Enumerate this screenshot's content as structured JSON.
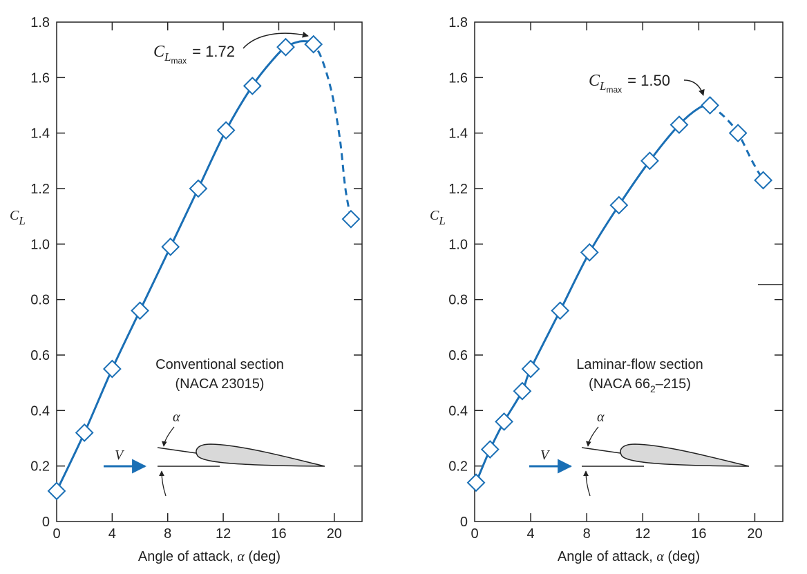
{
  "colors": {
    "series": "#1a6fb5",
    "marker_fill": "#ffffff",
    "axis": "#222222",
    "airfoil_fill": "#d9d9d9"
  },
  "icons": {
    "flow_arrow": "arrow-right-icon",
    "airfoil": "airfoil-icon"
  },
  "chart_data": [
    {
      "type": "line",
      "panel": "left",
      "ylabel_symbol": "C",
      "ylabel_sub": "L",
      "xlabel": "Angle of attack,",
      "xlabel_symbol": "α",
      "xlabel_unit": "(deg)",
      "xlim": [
        0,
        22
      ],
      "ylim": [
        0,
        1.8
      ],
      "x_ticks": [
        0,
        4,
        8,
        12,
        16,
        20
      ],
      "y_ticks": [
        "0",
        "0.2",
        "0.4",
        "0.6",
        "0.8",
        "1.0",
        "1.2",
        "1.4",
        "1.6",
        "1.8"
      ],
      "grid": false,
      "series": [
        {
          "points": [
            {
              "x": 0,
              "y": 0.11
            },
            {
              "x": 2,
              "y": 0.32
            },
            {
              "x": 4,
              "y": 0.55
            },
            {
              "x": 6,
              "y": 0.76
            },
            {
              "x": 8.2,
              "y": 0.99
            },
            {
              "x": 10.2,
              "y": 1.2
            },
            {
              "x": 12.2,
              "y": 1.41
            },
            {
              "x": 14.1,
              "y": 1.57
            },
            {
              "x": 16.5,
              "y": 1.71
            },
            {
              "x": 18.5,
              "y": 1.72
            },
            {
              "x": 21.2,
              "y": 1.09
            }
          ],
          "solid_curve": [
            [
              0,
              0.11
            ],
            [
              2,
              0.32
            ],
            [
              4,
              0.55
            ],
            [
              6,
              0.76
            ],
            [
              8.2,
              0.99
            ],
            [
              10.2,
              1.2
            ],
            [
              12.2,
              1.41
            ],
            [
              14.1,
              1.57
            ],
            [
              15.5,
              1.66
            ],
            [
              16.5,
              1.71
            ],
            [
              17.5,
              1.73
            ],
            [
              18.3,
              1.73
            ]
          ],
          "dashed_curve": [
            [
              18.3,
              1.73
            ],
            [
              19.0,
              1.68
            ],
            [
              19.8,
              1.55
            ],
            [
              20.4,
              1.38
            ],
            [
              20.8,
              1.2
            ],
            [
              21.2,
              1.09
            ]
          ]
        }
      ],
      "annotation": {
        "prefix": "C",
        "sub": "L",
        "subsub": "max",
        "value": "= 1.72",
        "x": 18.5,
        "y": 1.72
      },
      "section_lines": [
        "Conventional section",
        "(NACA 23015)"
      ],
      "diagram": {
        "flow_label": "V",
        "angle_label": "α"
      }
    },
    {
      "type": "line",
      "panel": "right",
      "ylabel_symbol": "C",
      "ylabel_sub": "L",
      "xlabel": "Angle of attack,",
      "xlabel_symbol": "α",
      "xlabel_unit": "(deg)",
      "xlim": [
        0,
        22
      ],
      "ylim": [
        0,
        1.8
      ],
      "x_ticks": [
        0,
        4,
        8,
        12,
        16,
        20
      ],
      "y_ticks": [
        "0",
        "0.2",
        "0.4",
        "0.6",
        "0.8",
        "1.0",
        "1.2",
        "1.4",
        "1.6",
        "1.8"
      ],
      "grid": false,
      "series": [
        {
          "points": [
            {
              "x": 0.1,
              "y": 0.14
            },
            {
              "x": 1.1,
              "y": 0.26
            },
            {
              "x": 2.1,
              "y": 0.36
            },
            {
              "x": 3.4,
              "y": 0.47
            },
            {
              "x": 4,
              "y": 0.55
            },
            {
              "x": 6.1,
              "y": 0.76
            },
            {
              "x": 8.2,
              "y": 0.97
            },
            {
              "x": 10.3,
              "y": 1.14
            },
            {
              "x": 12.5,
              "y": 1.3
            },
            {
              "x": 14.6,
              "y": 1.43
            },
            {
              "x": 16.8,
              "y": 1.5
            },
            {
              "x": 18.8,
              "y": 1.4
            },
            {
              "x": 20.6,
              "y": 1.23
            }
          ],
          "solid_curve": [
            [
              0.1,
              0.14
            ],
            [
              1.1,
              0.26
            ],
            [
              2.1,
              0.36
            ],
            [
              3.4,
              0.47
            ],
            [
              4,
              0.55
            ],
            [
              6.1,
              0.76
            ],
            [
              8.2,
              0.97
            ],
            [
              10.3,
              1.14
            ],
            [
              12.5,
              1.3
            ],
            [
              14.6,
              1.43
            ],
            [
              16.0,
              1.49
            ],
            [
              16.8,
              1.5
            ]
          ],
          "dashed_curve": [
            [
              16.8,
              1.5
            ],
            [
              17.8,
              1.46
            ],
            [
              18.8,
              1.4
            ],
            [
              19.8,
              1.3
            ],
            [
              20.6,
              1.23
            ]
          ]
        }
      ],
      "annotation": {
        "prefix": "C",
        "sub": "L",
        "subsub": "max",
        "value": "= 1.50",
        "x": 16.8,
        "y": 1.5
      },
      "section_lines": [
        "Laminar-flow section"
      ],
      "section_line2": {
        "prefix": "(NACA 66",
        "sub": "2",
        "suffix": "–215)"
      },
      "diagram": {
        "flow_label": "V",
        "angle_label": "α"
      }
    }
  ]
}
